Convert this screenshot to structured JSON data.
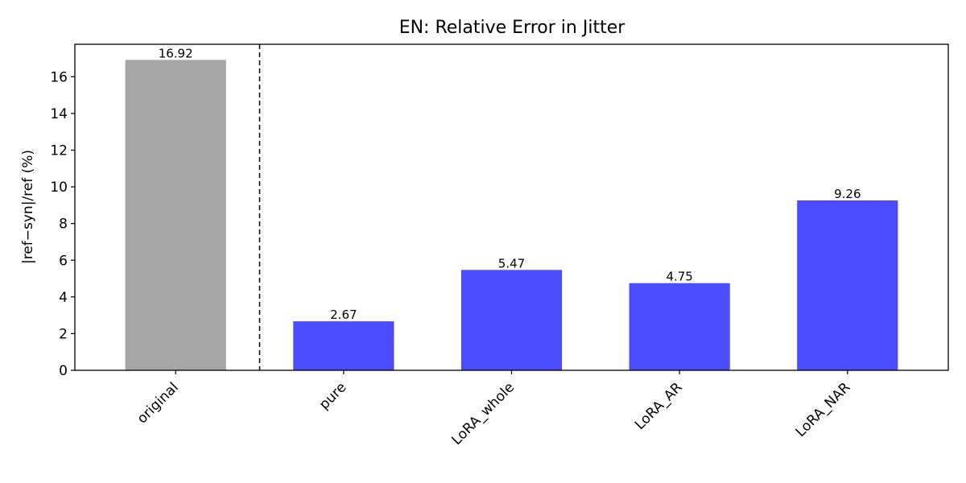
{
  "chart_data": {
    "type": "bar",
    "title": "EN: Relative Error in Jitter",
    "xlabel": "",
    "ylabel": "|ref−syn|/ref (%)",
    "categories": [
      "original",
      "pure",
      "LoRA_whole",
      "LoRA_AR",
      "LoRA_NAR"
    ],
    "values": [
      16.92,
      2.67,
      5.47,
      4.75,
      9.26
    ],
    "value_labels": [
      "16.92",
      "2.67",
      "5.47",
      "4.75",
      "9.26"
    ],
    "bar_colors": [
      "#a6a6a6",
      "#4b4bff",
      "#4b4bff",
      "#4b4bff",
      "#4b4bff"
    ],
    "ylim": [
      0,
      17.77
    ],
    "yticks": [
      0,
      2,
      4,
      6,
      8,
      10,
      12,
      14,
      16
    ],
    "ytick_labels": [
      "0",
      "2",
      "4",
      "6",
      "8",
      "10",
      "12",
      "14",
      "16"
    ],
    "separator": {
      "after_category_index": 0,
      "style": "dashed",
      "color": "#000000"
    },
    "grid": false,
    "legend": "none"
  }
}
